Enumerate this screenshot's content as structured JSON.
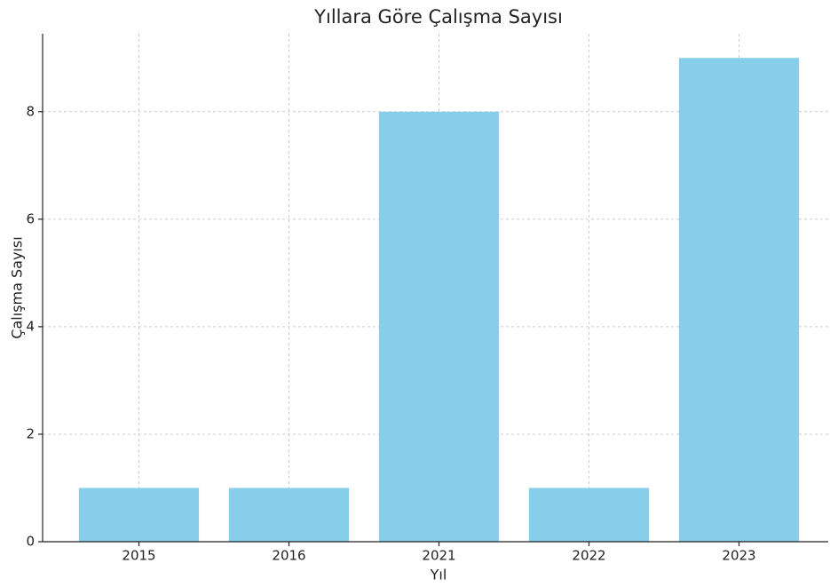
{
  "chart_data": {
    "type": "bar",
    "title": "Yıllara Göre Çalışma Sayısı",
    "xlabel": "Yıl",
    "ylabel": "Çalışma Sayısı",
    "categories": [
      "2015",
      "2016",
      "2021",
      "2022",
      "2023"
    ],
    "values": [
      1,
      1,
      8,
      1,
      9
    ],
    "color": "#87ceeb",
    "ylim": [
      0,
      9.45
    ],
    "yticks": [
      0,
      2,
      4,
      6,
      8
    ],
    "grid": true
  }
}
